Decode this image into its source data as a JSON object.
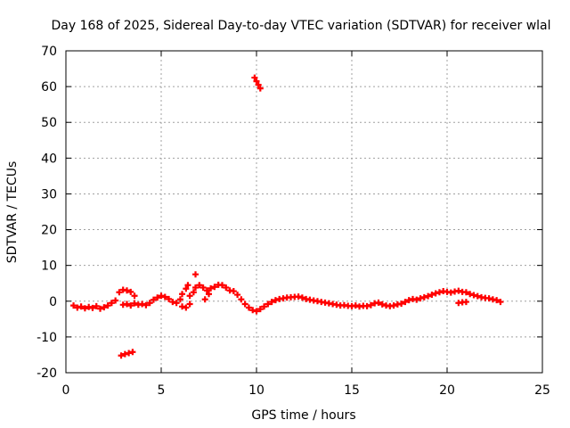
{
  "chart_data": {
    "type": "scatter",
    "title": "Day 168 of 2025, Sidereal Day-to-day VTEC variation (SDTVAR) for receiver wlal",
    "xlabel": "GPS time / hours",
    "ylabel": "SDTVAR / TECUs",
    "xlim": [
      0,
      25
    ],
    "ylim": [
      -20,
      70
    ],
    "xticks": [
      0,
      5,
      10,
      15,
      20,
      25
    ],
    "yticks": [
      -20,
      -10,
      0,
      10,
      20,
      30,
      40,
      50,
      60,
      70
    ],
    "grid": true,
    "marker": "+",
    "series": [
      {
        "name": "SDTVAR",
        "color": "#ff0000",
        "points": [
          [
            0.4,
            -1.2
          ],
          [
            0.6,
            -1.8
          ],
          [
            0.8,
            -1.5
          ],
          [
            1.0,
            -2.0
          ],
          [
            1.2,
            -1.6
          ],
          [
            1.4,
            -1.9
          ],
          [
            1.6,
            -1.4
          ],
          [
            1.8,
            -2.1
          ],
          [
            2.0,
            -1.7
          ],
          [
            2.2,
            -1.2
          ],
          [
            2.4,
            -0.5
          ],
          [
            2.6,
            0.2
          ],
          [
            2.8,
            2.5
          ],
          [
            3.0,
            3.2
          ],
          [
            3.2,
            3.0
          ],
          [
            3.4,
            2.6
          ],
          [
            3.6,
            1.5
          ],
          [
            3.0,
            -1.0
          ],
          [
            3.2,
            -0.8
          ],
          [
            3.4,
            -1.2
          ],
          [
            3.6,
            -0.6
          ],
          [
            3.8,
            -1.0
          ],
          [
            4.0,
            -0.8
          ],
          [
            4.2,
            -1.1
          ],
          [
            4.4,
            -0.5
          ],
          [
            4.6,
            0.4
          ],
          [
            4.8,
            1.0
          ],
          [
            5.0,
            1.5
          ],
          [
            5.2,
            1.2
          ],
          [
            5.4,
            0.6
          ],
          [
            5.6,
            -0.2
          ],
          [
            2.9,
            -15.2
          ],
          [
            3.1,
            -14.8
          ],
          [
            3.3,
            -14.5
          ],
          [
            3.5,
            -14.2
          ],
          [
            5.8,
            -0.5
          ],
          [
            6.0,
            0.5
          ],
          [
            6.1,
            2.0
          ],
          [
            6.3,
            3.5
          ],
          [
            6.4,
            4.5
          ],
          [
            6.1,
            -1.5
          ],
          [
            6.3,
            -1.8
          ],
          [
            6.5,
            -0.8
          ],
          [
            6.5,
            1.5
          ],
          [
            6.7,
            2.5
          ],
          [
            6.8,
            3.8
          ],
          [
            6.8,
            7.5
          ],
          [
            7.0,
            4.5
          ],
          [
            7.2,
            3.8
          ],
          [
            7.4,
            3.0
          ],
          [
            7.3,
            0.5
          ],
          [
            7.5,
            2.0
          ],
          [
            7.6,
            3.6
          ],
          [
            7.8,
            4.0
          ],
          [
            8.0,
            4.6
          ],
          [
            8.2,
            4.5
          ],
          [
            8.4,
            3.8
          ],
          [
            8.6,
            3.0
          ],
          [
            8.8,
            2.8
          ],
          [
            9.0,
            1.8
          ],
          [
            9.2,
            0.5
          ],
          [
            9.4,
            -0.8
          ],
          [
            9.6,
            -1.8
          ],
          [
            9.8,
            -2.5
          ],
          [
            10.0,
            -2.8
          ],
          [
            10.2,
            -2.2
          ],
          [
            10.4,
            -1.5
          ],
          [
            10.6,
            -0.8
          ],
          [
            10.8,
            -0.2
          ],
          [
            11.0,
            0.3
          ],
          [
            11.2,
            0.6
          ],
          [
            11.4,
            0.8
          ],
          [
            11.6,
            1.0
          ],
          [
            11.8,
            1.1
          ],
          [
            12.0,
            1.2
          ],
          [
            12.2,
            1.3
          ],
          [
            12.4,
            1.0
          ],
          [
            12.6,
            0.6
          ],
          [
            12.8,
            0.4
          ],
          [
            13.0,
            0.2
          ],
          [
            13.2,
            0.0
          ],
          [
            13.4,
            -0.2
          ],
          [
            13.6,
            -0.4
          ],
          [
            13.8,
            -0.6
          ],
          [
            14.0,
            -0.8
          ],
          [
            14.2,
            -1.0
          ],
          [
            14.4,
            -1.2
          ],
          [
            14.6,
            -1.1
          ],
          [
            14.8,
            -1.3
          ],
          [
            15.0,
            -1.4
          ],
          [
            15.2,
            -1.2
          ],
          [
            15.4,
            -1.5
          ],
          [
            15.6,
            -1.3
          ],
          [
            15.8,
            -1.4
          ],
          [
            16.0,
            -1.1
          ],
          [
            16.2,
            -0.6
          ],
          [
            16.4,
            -0.4
          ],
          [
            16.6,
            -0.9
          ],
          [
            16.8,
            -1.2
          ],
          [
            17.0,
            -1.4
          ],
          [
            17.2,
            -1.2
          ],
          [
            17.4,
            -0.9
          ],
          [
            17.6,
            -0.7
          ],
          [
            17.8,
            -0.2
          ],
          [
            18.0,
            0.3
          ],
          [
            18.2,
            0.6
          ],
          [
            18.4,
            0.4
          ],
          [
            18.6,
            0.8
          ],
          [
            18.8,
            1.1
          ],
          [
            19.0,
            1.4
          ],
          [
            19.2,
            1.8
          ],
          [
            19.4,
            2.2
          ],
          [
            19.6,
            2.5
          ],
          [
            19.8,
            2.8
          ],
          [
            20.0,
            2.6
          ],
          [
            20.2,
            2.4
          ],
          [
            20.4,
            2.7
          ],
          [
            20.6,
            2.9
          ],
          [
            20.8,
            2.6
          ],
          [
            21.0,
            2.5
          ],
          [
            21.2,
            2.0
          ],
          [
            21.4,
            1.7
          ],
          [
            21.6,
            1.4
          ],
          [
            21.8,
            1.1
          ],
          [
            22.0,
            0.9
          ],
          [
            22.2,
            0.8
          ],
          [
            22.4,
            0.5
          ],
          [
            22.6,
            0.3
          ],
          [
            22.8,
            -0.2
          ],
          [
            20.6,
            -0.5
          ],
          [
            20.8,
            -0.3
          ],
          [
            21.0,
            -0.2
          ],
          [
            9.9,
            62.5
          ],
          [
            10.0,
            61.5
          ],
          [
            10.1,
            60.5
          ],
          [
            10.2,
            59.5
          ]
        ]
      }
    ]
  }
}
